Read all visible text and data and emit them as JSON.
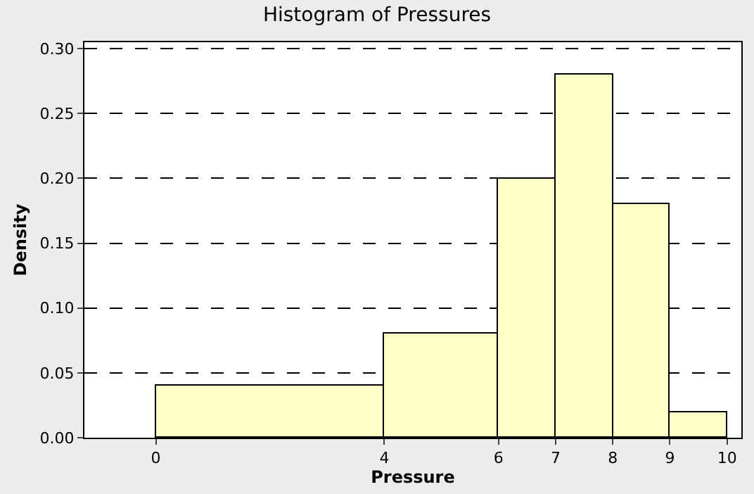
{
  "chart_data": {
    "type": "histogram",
    "title": "Histogram of Pressures",
    "xlabel": "Pressure",
    "ylabel": "Density",
    "bins": [
      0,
      4,
      6,
      7,
      8,
      9,
      10
    ],
    "values": [
      0.04,
      0.08,
      0.2,
      0.28,
      0.18,
      0.02
    ],
    "color": "#ffffc8",
    "xlim": [
      -1.25,
      10.25
    ],
    "xticks": [
      0,
      4,
      6,
      7,
      8,
      9,
      10
    ],
    "ylim": [
      0,
      0.305
    ],
    "yticks": [
      {
        "value": 0,
        "label": "0.00"
      },
      {
        "value": 0.05,
        "label": "0.05"
      },
      {
        "value": 0.1,
        "label": "0.10"
      },
      {
        "value": 0.15,
        "label": "0.15"
      },
      {
        "value": 0.2,
        "label": "0.20"
      },
      {
        "value": 0.25,
        "label": "0.25"
      },
      {
        "value": 0.3,
        "label": "0.30"
      }
    ],
    "grid": "y",
    "line_style": "dashed"
  }
}
